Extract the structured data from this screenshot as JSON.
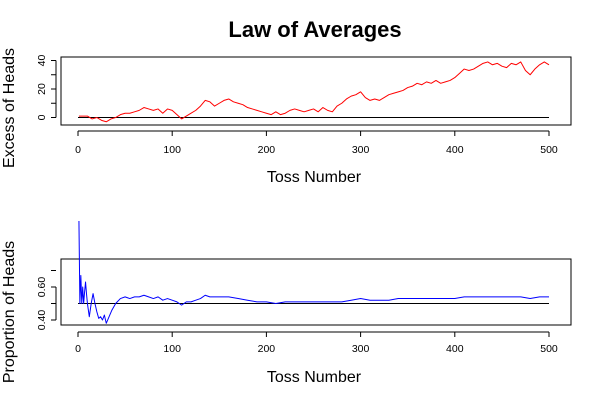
{
  "chart_data": [
    {
      "type": "line",
      "title": "Law of Averages",
      "xlabel": "Toss Number",
      "ylabel": "Excess of Heads",
      "xlim": [
        0,
        500
      ],
      "ylim": [
        -5,
        42
      ],
      "xticks": [
        0,
        100,
        200,
        300,
        400,
        500
      ],
      "yticks": [
        0,
        20,
        40
      ],
      "reference_line": 0,
      "grid": false,
      "series": [
        {
          "color": "#ff0000",
          "x": [
            1,
            5,
            10,
            15,
            20,
            25,
            30,
            35,
            40,
            45,
            50,
            55,
            60,
            65,
            70,
            75,
            80,
            85,
            90,
            95,
            100,
            105,
            110,
            115,
            120,
            125,
            130,
            135,
            140,
            145,
            150,
            155,
            160,
            165,
            170,
            175,
            180,
            185,
            190,
            195,
            200,
            205,
            210,
            215,
            220,
            225,
            230,
            235,
            240,
            245,
            250,
            255,
            260,
            265,
            270,
            275,
            280,
            285,
            290,
            295,
            300,
            305,
            310,
            315,
            320,
            325,
            330,
            335,
            340,
            345,
            350,
            355,
            360,
            365,
            370,
            375,
            380,
            385,
            390,
            395,
            400,
            405,
            410,
            415,
            420,
            425,
            430,
            435,
            440,
            445,
            450,
            455,
            460,
            465,
            470,
            475,
            480,
            485,
            490,
            495,
            500
          ],
          "y": [
            1,
            1,
            1,
            -1,
            0,
            -2,
            -3,
            -1,
            0,
            2,
            3,
            3,
            4,
            5,
            7,
            6,
            5,
            6,
            3,
            6,
            5,
            2,
            -1,
            1,
            3,
            5,
            8,
            12,
            11,
            8,
            10,
            12,
            13,
            11,
            10,
            9,
            7,
            6,
            5,
            4,
            3,
            2,
            4,
            2,
            3,
            5,
            6,
            5,
            4,
            5,
            6,
            4,
            7,
            5,
            4,
            8,
            10,
            13,
            15,
            16,
            18,
            14,
            12,
            13,
            12,
            14,
            16,
            17,
            18,
            19,
            21,
            22,
            24,
            23,
            25,
            24,
            26,
            24,
            25,
            26,
            28,
            31,
            34,
            33,
            34,
            36,
            38,
            39,
            37,
            38,
            36,
            35,
            38,
            37,
            39,
            33,
            30,
            34,
            37,
            39,
            37
          ]
        }
      ]
    },
    {
      "type": "line",
      "title": "",
      "xlabel": "Toss Number",
      "ylabel": "Proportion of Heads",
      "xlim": [
        0,
        500
      ],
      "ylim": [
        0.36,
        0.84
      ],
      "xticks": [
        0,
        100,
        200,
        300,
        400,
        500
      ],
      "yticks": [
        "0.40",
        "0.60"
      ],
      "reference_line": 0.5,
      "grid": false,
      "series": [
        {
          "color": "#0000ff",
          "x": [
            1,
            2,
            3,
            4,
            5,
            6,
            7,
            8,
            9,
            10,
            12,
            14,
            16,
            18,
            20,
            22,
            24,
            26,
            28,
            30,
            33,
            36,
            40,
            45,
            50,
            55,
            60,
            65,
            70,
            75,
            80,
            85,
            90,
            95,
            100,
            105,
            110,
            115,
            120,
            125,
            130,
            135,
            140,
            150,
            160,
            170,
            180,
            190,
            200,
            210,
            220,
            230,
            240,
            250,
            260,
            270,
            280,
            290,
            300,
            310,
            320,
            330,
            340,
            350,
            360,
            370,
            380,
            390,
            400,
            410,
            420,
            430,
            440,
            450,
            460,
            470,
            480,
            490,
            500
          ],
          "y": [
            1.0,
            0.5,
            0.67,
            0.5,
            0.6,
            0.5,
            0.57,
            0.63,
            0.56,
            0.5,
            0.42,
            0.5,
            0.56,
            0.5,
            0.45,
            0.41,
            0.42,
            0.4,
            0.43,
            0.38,
            0.42,
            0.46,
            0.5,
            0.53,
            0.54,
            0.53,
            0.54,
            0.54,
            0.55,
            0.54,
            0.53,
            0.54,
            0.52,
            0.53,
            0.52,
            0.51,
            0.49,
            0.51,
            0.51,
            0.52,
            0.53,
            0.55,
            0.54,
            0.54,
            0.54,
            0.53,
            0.52,
            0.51,
            0.51,
            0.5,
            0.51,
            0.51,
            0.51,
            0.51,
            0.51,
            0.51,
            0.51,
            0.52,
            0.53,
            0.52,
            0.52,
            0.52,
            0.53,
            0.53,
            0.53,
            0.53,
            0.53,
            0.53,
            0.53,
            0.54,
            0.54,
            0.54,
            0.54,
            0.54,
            0.54,
            0.54,
            0.53,
            0.54,
            0.54
          ]
        }
      ]
    }
  ]
}
